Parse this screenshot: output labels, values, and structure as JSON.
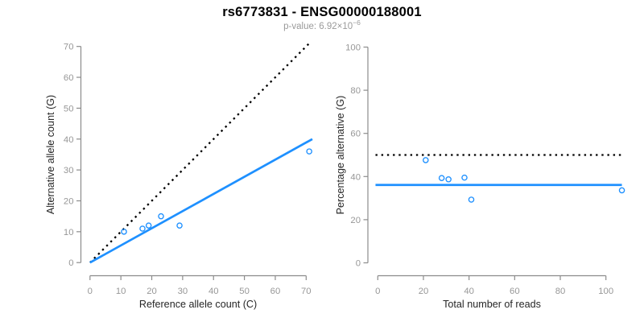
{
  "header": {
    "title": "rs6773831 - ENSG00000188001",
    "pvalue_prefix": "p-value: 6.92×10",
    "pvalue_exponent": "−6"
  },
  "colors": {
    "accent_blue": "#1E90FF",
    "black_line": "#000000",
    "axis_gray": "#8C8C8C",
    "tick_label_gray": "#979797",
    "axis_title_dark": "#262626",
    "subtitle_gray": "#9A9A9A",
    "background": "#FFFFFF"
  },
  "chart_data": [
    {
      "type": "scatter",
      "name": "allele-count-scatter",
      "title": "",
      "xlabel": "Reference allele count (C)",
      "ylabel": "Alternative allele count (G)",
      "xlim": [
        0,
        72
      ],
      "ylim": [
        0,
        72
      ],
      "xticks": [
        0,
        10,
        20,
        30,
        40,
        50,
        60,
        70
      ],
      "yticks": [
        0,
        10,
        20,
        30,
        40,
        50,
        60,
        70
      ],
      "grid": false,
      "legend_position": "none",
      "points": [
        [
          11,
          10
        ],
        [
          17,
          11
        ],
        [
          19,
          12
        ],
        [
          23,
          15
        ],
        [
          29,
          12
        ],
        [
          71,
          36
        ]
      ],
      "lines": [
        {
          "name": "identity-dotted-line",
          "style": "dotted",
          "color_key": "black_line",
          "x1": 0,
          "y1": 0,
          "x2": 71,
          "y2": 71
        },
        {
          "name": "regression-line",
          "style": "solid",
          "color_key": "accent_blue",
          "x1": 0,
          "y1": 0,
          "x2": 72,
          "y2": 40
        }
      ]
    },
    {
      "type": "scatter",
      "name": "percentage-scatter",
      "title": "",
      "xlabel": "Total number of reads",
      "ylabel": "Percentage alternative (G)",
      "xlim": [
        0,
        108
      ],
      "ylim": [
        0,
        100
      ],
      "xticks": [
        0,
        20,
        40,
        60,
        80,
        100
      ],
      "yticks": [
        0,
        20,
        40,
        60,
        80,
        100
      ],
      "grid": false,
      "legend_position": "none",
      "points": [
        [
          21,
          47.6
        ],
        [
          28,
          39.3
        ],
        [
          31,
          38.7
        ],
        [
          38,
          39.5
        ],
        [
          41,
          29.3
        ],
        [
          107,
          33.6
        ]
      ],
      "lines": [
        {
          "name": "fifty-percent-dotted-line",
          "style": "dotted",
          "color_key": "black_line",
          "x1": -1,
          "y1": 50,
          "x2": 107,
          "y2": 50
        },
        {
          "name": "mean-percentage-line",
          "style": "solid",
          "color_key": "accent_blue",
          "x1": -1,
          "y1": 36.1,
          "x2": 107,
          "y2": 36.1
        }
      ]
    }
  ]
}
